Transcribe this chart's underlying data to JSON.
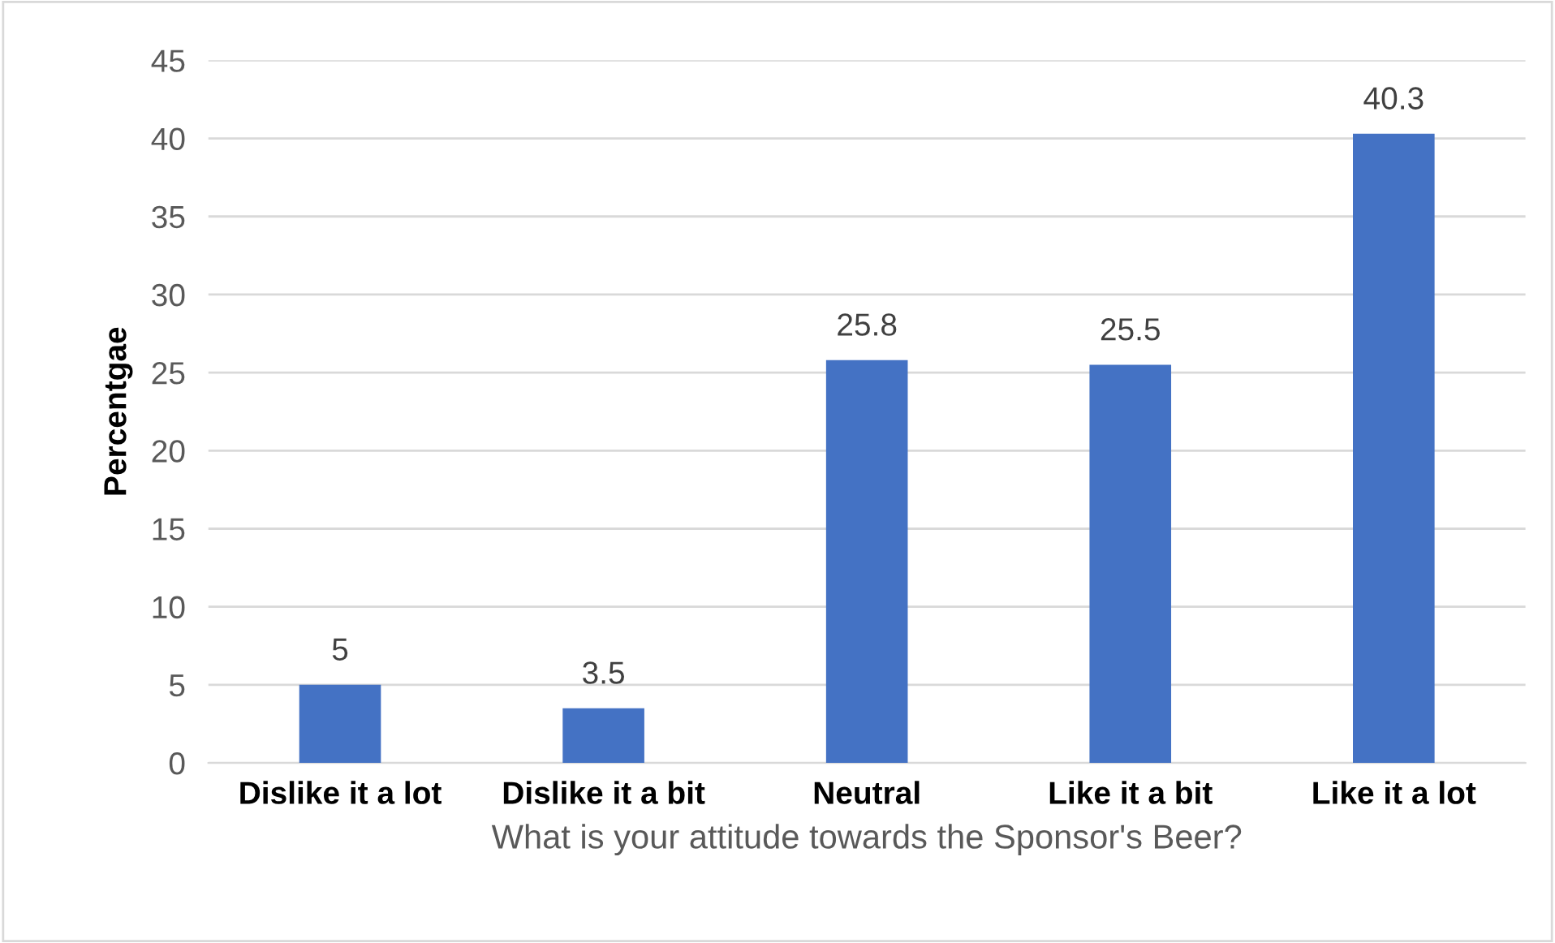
{
  "chart_data": {
    "type": "bar",
    "xlabel": "What is your attitude towards the Sponsor's Beer?",
    "ylabel": "Percentgae",
    "categories": [
      "Dislike it a lot",
      "Dislike it a bit",
      "Neutral",
      "Like it a bit",
      "Like it a lot"
    ],
    "values": [
      5,
      3.5,
      25.8,
      25.5,
      40.3
    ],
    "color": "#4472c4",
    "ylim": [
      0,
      45
    ],
    "yticks": [
      0,
      5,
      10,
      15,
      20,
      25,
      30,
      35,
      40,
      45
    ],
    "grid": "y",
    "data_labels": true
  }
}
